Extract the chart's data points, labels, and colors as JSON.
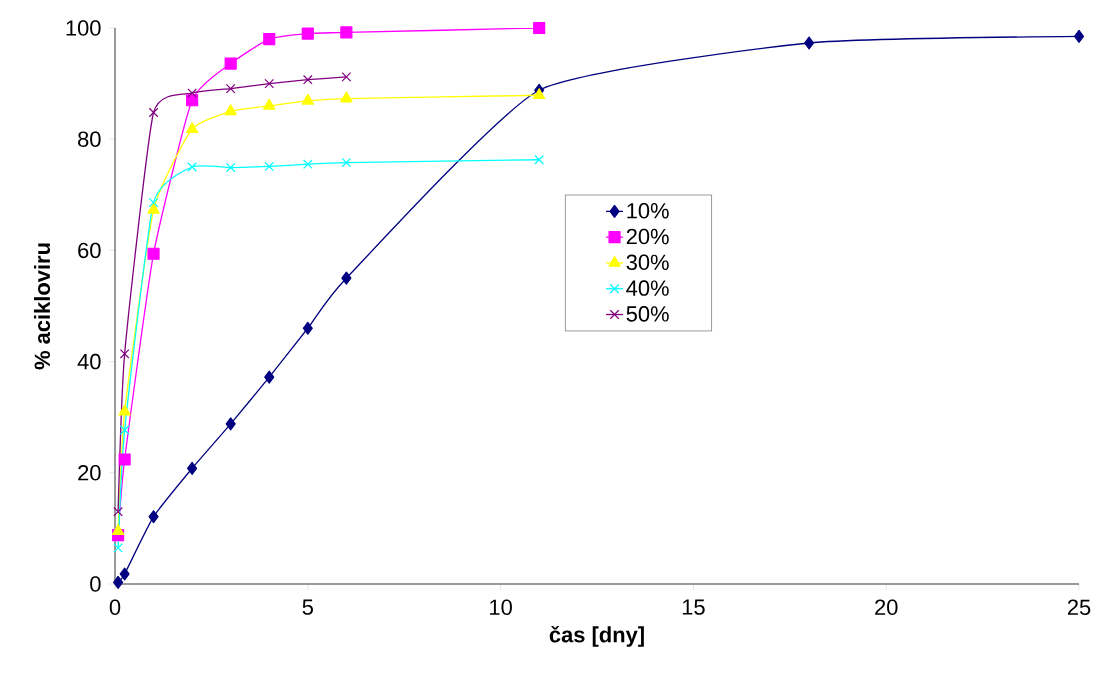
{
  "chart_data": {
    "type": "line",
    "xlabel": "čas [dny]",
    "ylabel": "% acikloviru",
    "xlim": [
      0,
      25
    ],
    "ylim": [
      0,
      100
    ],
    "xticks": [
      0,
      5,
      10,
      15,
      20,
      25
    ],
    "yticks": [
      0,
      20,
      40,
      60,
      80,
      100
    ],
    "grid": false,
    "legend": "center",
    "line_style": "solid",
    "series": [
      {
        "name": "10%",
        "color": "#000080",
        "marker": "diamond",
        "x": [
          0.08,
          0.25,
          1,
          2,
          3,
          4,
          5,
          6,
          11,
          18,
          25
        ],
        "values": [
          0.3,
          1.8,
          12.1,
          20.8,
          28.8,
          37.2,
          46,
          55,
          88.8,
          97.3,
          98.5
        ]
      },
      {
        "name": "20%",
        "color": "#ff00ff",
        "marker": "square",
        "x": [
          0.08,
          0.25,
          1,
          2,
          3,
          4,
          5,
          6,
          11
        ],
        "values": [
          8.8,
          22.4,
          59.4,
          87,
          93.6,
          98,
          99,
          99.2,
          100
        ]
      },
      {
        "name": "30%",
        "color": "#ffff00",
        "marker": "triangle",
        "x": [
          0.08,
          0.25,
          1,
          2,
          3,
          4,
          5,
          6,
          11
        ],
        "values": [
          9.5,
          31,
          67.3,
          81.8,
          85,
          86,
          86.9,
          87.3,
          87.9
        ]
      },
      {
        "name": "40%",
        "color": "#00ffff",
        "marker": "cross",
        "x": [
          0.08,
          0.25,
          1,
          2,
          3,
          4,
          5,
          6,
          11
        ],
        "values": [
          6.5,
          27.7,
          68.6,
          75,
          74.9,
          75.1,
          75.5,
          75.8,
          76.3
        ]
      },
      {
        "name": "50%",
        "color": "#800080",
        "marker": "cross",
        "x": [
          0.08,
          0.25,
          1,
          2,
          3,
          4,
          5,
          6
        ],
        "values": [
          13,
          41.4,
          84.8,
          88.3,
          89.1,
          90,
          90.7,
          91.2
        ]
      }
    ]
  }
}
